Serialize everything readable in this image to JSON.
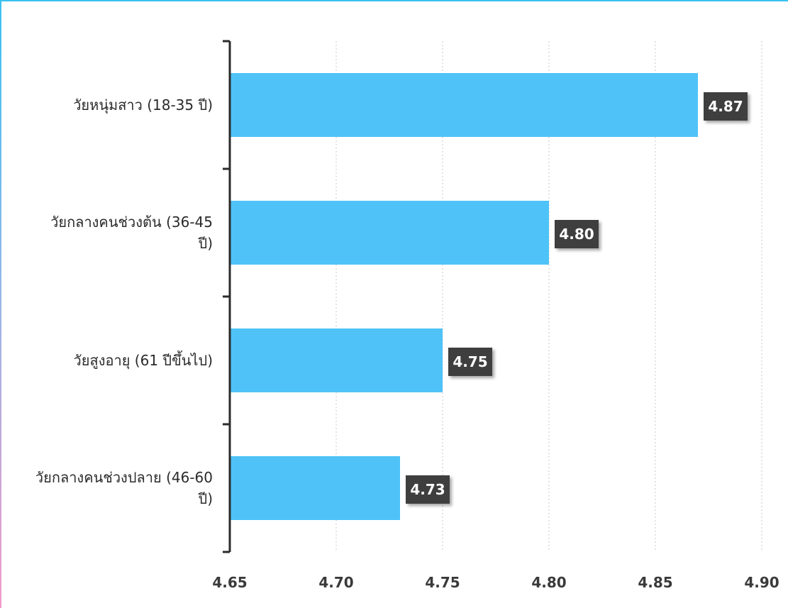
{
  "chart_data": {
    "type": "bar",
    "orientation": "horizontal",
    "categories": [
      "วัยหนุ่มสาว (18-35 ปี)",
      "วัยกลางคนช่วงต้น (36-45 ปี)",
      "วัยสูงอายุ (61 ปีขึ้นไป)",
      "วัยกลางคนช่วงปลาย (46-60 ปี)"
    ],
    "category_lines": [
      [
        "วัยหนุ่มสาว (18-35 ปี)"
      ],
      [
        "วัยกลางคนช่วงต้น (36-45",
        "ปี)"
      ],
      [
        "วัยสูงอายุ (61 ปีขึ้นไป)"
      ],
      [
        "วัยกลางคนช่วงปลาย (46-60",
        "ปี)"
      ]
    ],
    "values": [
      4.87,
      4.8,
      4.75,
      4.73
    ],
    "value_labels": [
      "4.87",
      "4.80",
      "4.75",
      "4.73"
    ],
    "xlim": [
      4.65,
      4.9
    ],
    "ticks": [
      4.65,
      4.7,
      4.75,
      4.8,
      4.85,
      4.9
    ],
    "tick_labels": [
      "4.65",
      "4.70",
      "4.75",
      "4.80",
      "4.85",
      "4.90"
    ],
    "title": "",
    "xlabel": "",
    "ylabel": "",
    "grid": "vertical dotted",
    "legend": "none",
    "colors": {
      "bar": "#4fc3f7",
      "label_box": "#3b3b3b",
      "label_text": "#ffffff",
      "axis": "#2b2b2b",
      "grid": "#c8c8c8",
      "frame_top": "#39c2f0",
      "frame_left_bottom": "#f29ac8"
    }
  }
}
